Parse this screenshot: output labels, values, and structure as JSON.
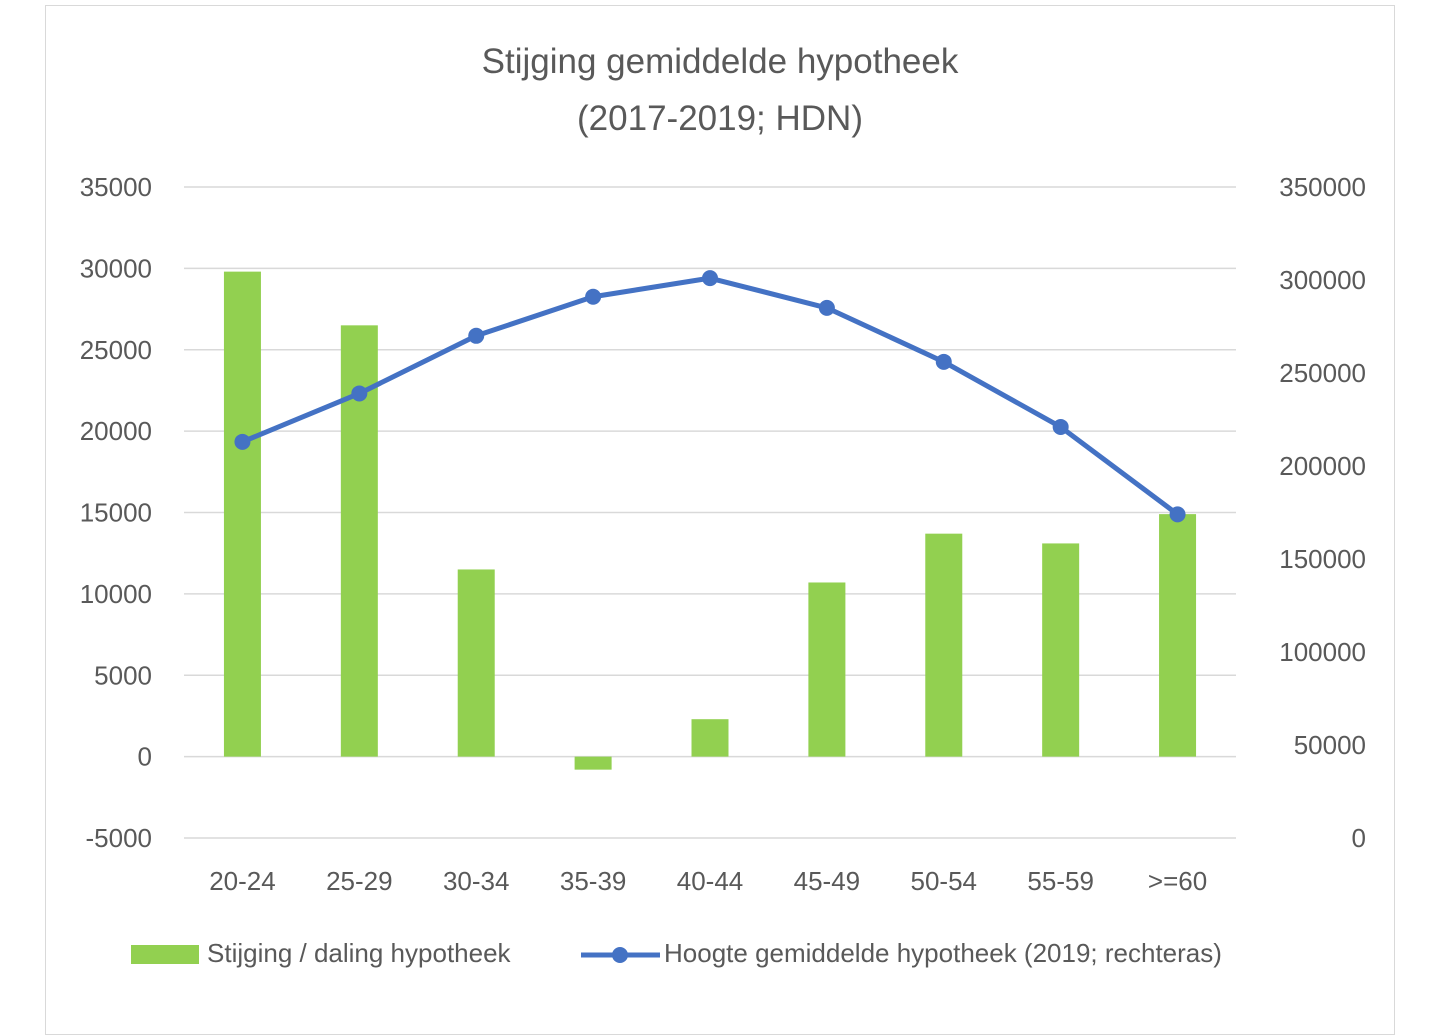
{
  "chart_data": {
    "type": "bar+line",
    "title_lines": [
      "Stijging gemiddelde hypotheek",
      "(2017-2019; HDN)"
    ],
    "categories": [
      "20-24",
      "25-29",
      "30-34",
      "35-39",
      "40-44",
      "45-49",
      "50-54",
      "55-59",
      ">=60"
    ],
    "left_axis": {
      "ylim": [
        -5000,
        35000
      ],
      "ticks": [
        "35000",
        "30000",
        "25000",
        "20000",
        "15000",
        "10000",
        "5000",
        "0",
        "-5000"
      ]
    },
    "right_axis": {
      "ylim": [
        0,
        350000
      ],
      "ticks": [
        "350000",
        "300000",
        "250000",
        "200000",
        "150000",
        "100000",
        "50000",
        "0"
      ]
    },
    "series": [
      {
        "name": "Stijging / daling hypotheek",
        "kind": "bar",
        "axis": "left",
        "color": "#92d050",
        "values": [
          29800,
          26500,
          11500,
          -800,
          2300,
          10700,
          13700,
          13100,
          14900
        ]
      },
      {
        "name": "Hoogte gemiddelde hypotheek (2019; rechteras)",
        "kind": "line",
        "axis": "right",
        "color": "#4472c4",
        "values": [
          213000,
          239000,
          270000,
          291000,
          301000,
          285000,
          256000,
          221000,
          174000
        ]
      }
    ],
    "grid": true,
    "legend_position": "bottom"
  }
}
